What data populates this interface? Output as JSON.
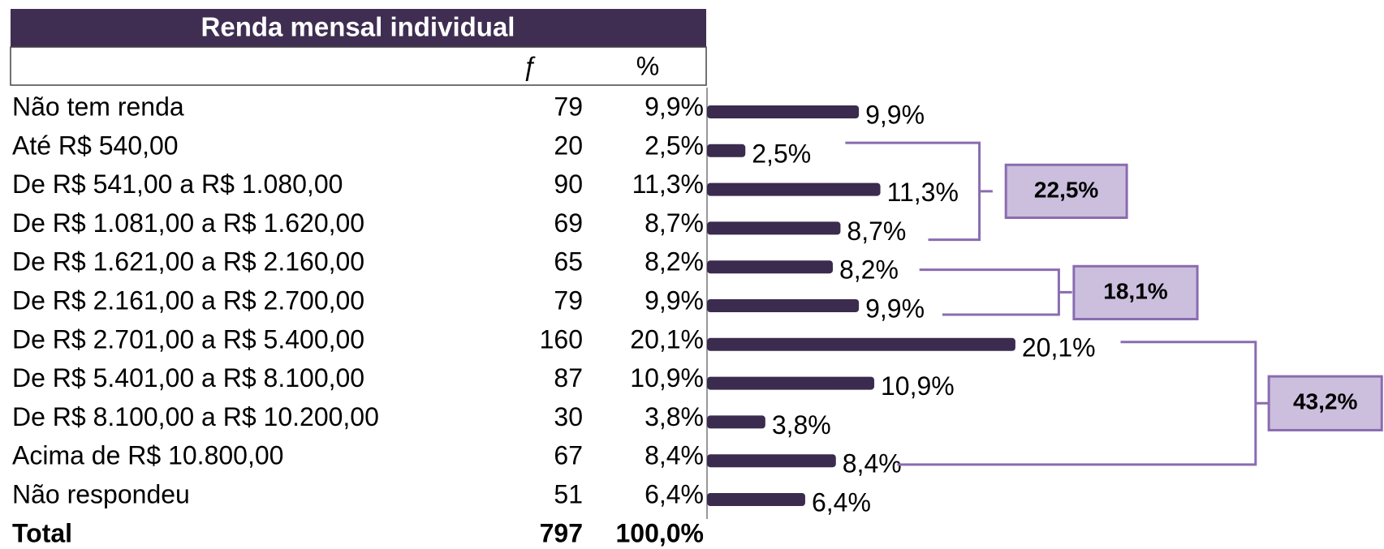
{
  "table": {
    "title": "Renda mensal individual",
    "headers": [
      "ƒ",
      "%"
    ],
    "f": [
      "79",
      "20",
      "90",
      "69",
      "65",
      "79",
      "160",
      "87",
      "30",
      "67",
      "51"
    ],
    "total": [
      "Total",
      "797",
      "100,0%"
    ]
  },
  "chart_data": {
    "type": "bar",
    "orientation": "horizontal",
    "color": "#3b2b4e",
    "categories": [
      "Não tem renda",
      "Até R$ 540,00",
      "De R$ 541,00 a R$ 1.080,00",
      "De R$ 1.081,00 a R$ 1.620,00",
      "De R$ 1.621,00 a R$ 2.160,00",
      "De R$ 2.161,00 a R$ 2.700,00",
      "De R$ 2.701,00 a R$ 5.400,00",
      "De R$ 5.401,00 a R$ 8.100,00",
      "De R$ 8.100,00 a R$ 10.200,00",
      "Acima de R$ 10.800,00",
      "Não respondeu"
    ],
    "values": [
      9.9,
      2.5,
      11.3,
      8.7,
      8.2,
      9.9,
      20.1,
      10.9,
      3.8,
      8.4,
      6.4
    ],
    "value_labels": [
      "9,9%",
      "2,5%",
      "11,3%",
      "8,7%",
      "8,2%",
      "9,9%",
      "20,1%",
      "10,9%",
      "3,8%",
      "8,4%",
      "6,4%"
    ],
    "annotations": [
      "22,5%",
      "18,1%",
      "43,2%"
    ]
  }
}
